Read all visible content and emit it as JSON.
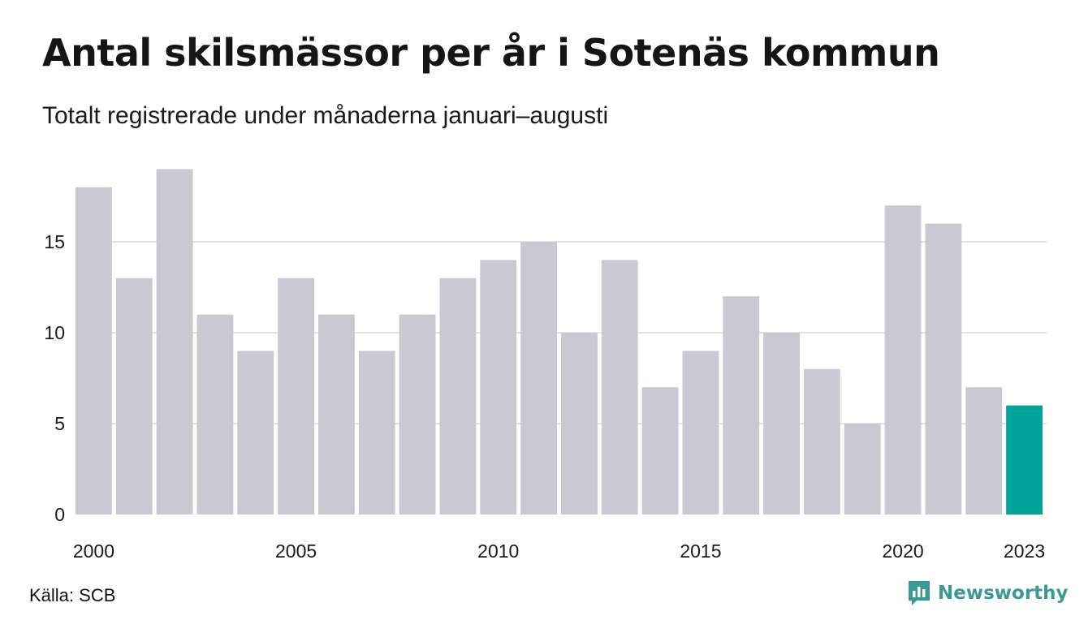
{
  "header": {
    "title": "Antal skilsmässor per år i Sotenäs kommun",
    "subtitle": "Totalt registrerade under månaderna januari–augusti"
  },
  "chart_data": {
    "type": "bar",
    "title": "Antal skilsmässor per år i Sotenäs kommun",
    "subtitle": "Totalt registrerade under månaderna januari–augusti",
    "categories": [
      "2000",
      "2001",
      "2002",
      "2003",
      "2004",
      "2005",
      "2006",
      "2007",
      "2008",
      "2009",
      "2010",
      "2011",
      "2012",
      "2013",
      "2014",
      "2015",
      "2016",
      "2017",
      "2018",
      "2019",
      "2020",
      "2021",
      "2022",
      "2023"
    ],
    "values": [
      18,
      13,
      19,
      11,
      9,
      13,
      11,
      9,
      11,
      13,
      14,
      15,
      10,
      14,
      7,
      9,
      12,
      10,
      8,
      5,
      17,
      16,
      7,
      6
    ],
    "x_tick_labels": [
      "2000",
      "2005",
      "2010",
      "2015",
      "2020",
      "2023"
    ],
    "y_ticks": [
      0,
      5,
      10,
      15
    ],
    "ylim": [
      0,
      19
    ],
    "xlabel": "",
    "ylabel": "",
    "grid": true,
    "colors": {
      "bar": "#c9c8d3",
      "highlight": "#00a39a",
      "grid": "#e2e2e6"
    },
    "highlight_category": "2023"
  },
  "footer": {
    "source": "Källa: SCB",
    "brand": "Newsworthy",
    "brand_icon": "newsworthy-logo-icon",
    "brand_color": "#3a9a92"
  }
}
